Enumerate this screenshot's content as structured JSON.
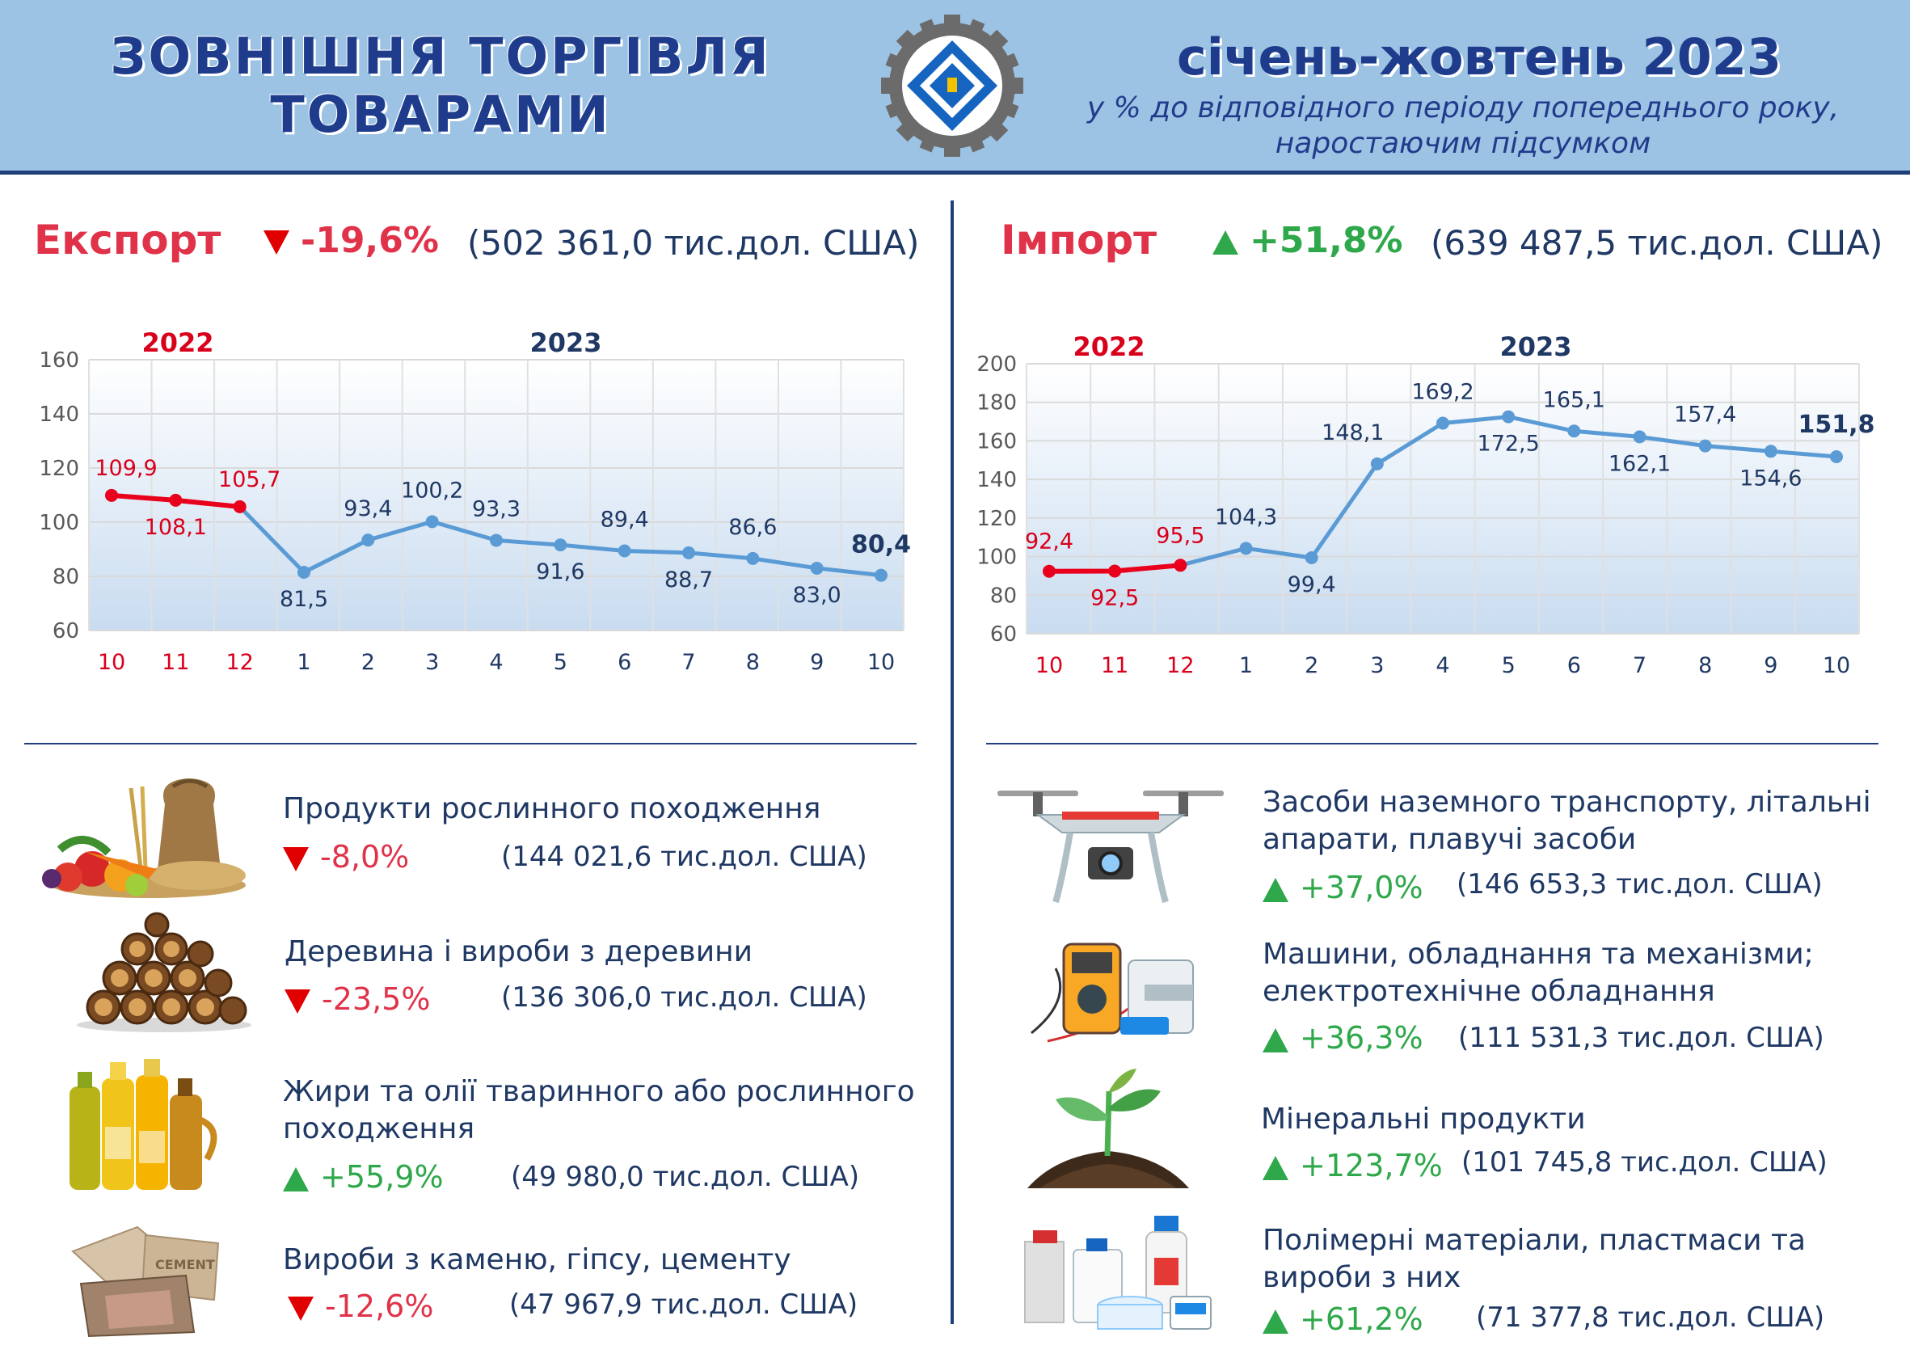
{
  "header": {
    "title_line1": "ЗОВНІШНЯ ТОРГІВЛЯ",
    "title_line2": "ТОВАРАМИ",
    "period": "січень-жовтень 2023",
    "subtitle_line1": "у % до відповідного періоду попереднього року,",
    "subtitle_line2": "наростаючим підсумком",
    "logo_icon": "statistics-service-logo-icon"
  },
  "export": {
    "title": "Експорт",
    "change": "-19,6%",
    "value": "(502 361,0 тис.дол. США)",
    "items": [
      {
        "name_line1": "Продукти рослинного походження",
        "name_line2": "",
        "change": "-8,0%",
        "value": "(144 021,6 тис.дол. США)",
        "icon": "vegetables-grain-icon"
      },
      {
        "name_line1": "Деревина і вироби з деревини",
        "name_line2": "",
        "change": "-23,5%",
        "value": "(136 306,0 тис.дол. США)",
        "icon": "firewood-logs-icon"
      },
      {
        "name_line1": "Жири та олії тваринного або рослинного",
        "name_line2": "походження",
        "change": "+55,9%",
        "value": "(49 980,0 тис.дол. США)",
        "icon": "oil-bottles-icon"
      },
      {
        "name_line1": "Вироби з каменю, гіпсу, цементу",
        "name_line2": "",
        "change": "-12,6%",
        "value": "(47 967,9 тис.дол. США)",
        "icon": "cement-bags-icon",
        "bag_label": "CEMENT"
      }
    ]
  },
  "import": {
    "title": "Імпорт",
    "change": "+51,8%",
    "value": "(639 487,5 тис.дол. США)",
    "items": [
      {
        "name_line1": "Засоби наземного транспорту, літальні",
        "name_line2": "апарати, плавучі засоби",
        "change": "+37,0%",
        "value": "(146 653,3 тис.дол. США)",
        "icon": "drone-icon"
      },
      {
        "name_line1": "Машини, обладнання та механізми;",
        "name_line2": "електротехнічне обладнання",
        "change": "+36,3%",
        "value": "(111 531,3 тис.дол. США)",
        "icon": "multimeter-tools-icon"
      },
      {
        "name_line1": "Мінеральні продукти",
        "name_line2": "",
        "change": "+123,7%",
        "value": "(101 745,8 тис.дол. США)",
        "icon": "sprout-soil-icon"
      },
      {
        "name_line1": "Полімерні матеріали, пластмаси та",
        "name_line2": "вироби з них",
        "change": "+61,2%",
        "value": "(71 377,8 тис.дол. США)",
        "icon": "plastic-containers-icon"
      }
    ]
  },
  "colors": {
    "header_bg": "#9cc3e3",
    "navy": "#1f3864",
    "red": "#e0334a",
    "green": "#2ea84a",
    "line_2023": "#5b9bd5",
    "line_2022": "#e8001c"
  },
  "chart_data": [
    {
      "type": "line",
      "name": "export",
      "categories": [
        "10",
        "11",
        "12",
        "1",
        "2",
        "3",
        "4",
        "5",
        "6",
        "7",
        "8",
        "9",
        "10"
      ],
      "year_labels": [
        "2022",
        "2023"
      ],
      "values": [
        109.9,
        108.1,
        105.7,
        81.5,
        93.4,
        100.2,
        93.3,
        91.6,
        89.4,
        88.7,
        86.6,
        83.0,
        80.4
      ],
      "value_labels": [
        "109,9",
        "108,1",
        "105,7",
        "81,5",
        "93,4",
        "100,2",
        "93,3",
        "91,6",
        "89,4",
        "88,7",
        "86,6",
        "83,0",
        "80,4"
      ],
      "ylim": [
        60,
        160
      ],
      "yticks": [
        "60",
        "80",
        "100",
        "120",
        "140",
        "160"
      ],
      "grid": true
    },
    {
      "type": "line",
      "name": "import",
      "categories": [
        "10",
        "11",
        "12",
        "1",
        "2",
        "3",
        "4",
        "5",
        "6",
        "7",
        "8",
        "9",
        "10"
      ],
      "year_labels": [
        "2022",
        "2023"
      ],
      "values": [
        92.4,
        92.5,
        95.5,
        104.3,
        99.4,
        148.1,
        169.2,
        172.5,
        165.1,
        162.1,
        157.4,
        154.6,
        151.8
      ],
      "value_labels": [
        "92,4",
        "92,5",
        "95,5",
        "104,3",
        "99,4",
        "148,1",
        "169,2",
        "172,5",
        "165,1",
        "162,1",
        "157,4",
        "154,6",
        "151,8"
      ],
      "ylim": [
        60,
        200
      ],
      "yticks": [
        "60",
        "80",
        "100",
        "120",
        "140",
        "160",
        "180",
        "200"
      ],
      "grid": true
    }
  ]
}
